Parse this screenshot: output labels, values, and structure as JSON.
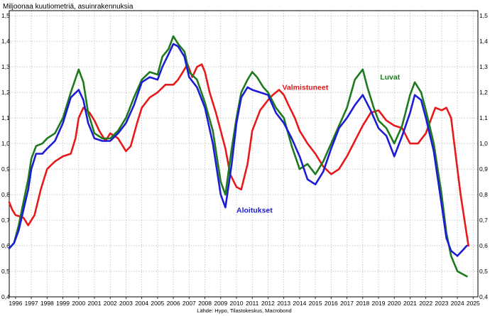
{
  "chart_data": {
    "type": "line",
    "title": "Miljoonaa kuutiometriä, asuinrakennuksia",
    "source": "Lähde: Hypo, Tilastokeskus, Macrobond",
    "x_ticks": [
      "1996",
      "1997",
      "1998",
      "1999",
      "2000",
      "2001",
      "2002",
      "2003",
      "2004",
      "2005",
      "2006",
      "2007",
      "2008",
      "2009",
      "2010",
      "2011",
      "2012",
      "2013",
      "2014",
      "2015",
      "2016",
      "2017",
      "2018",
      "2019",
      "2020",
      "2021",
      "2022",
      "2023",
      "2024",
      "2025"
    ],
    "y_ticks": [
      "0,4",
      "0,5",
      "0,6",
      "0,7",
      "0,8",
      "0,9",
      "1,0",
      "1,1",
      "1,2",
      "1,3",
      "1,4",
      "1,5"
    ],
    "xlim": [
      1995.6,
      2025.3
    ],
    "ylim": [
      0.4,
      1.52
    ],
    "grid": true,
    "series": [
      {
        "name": "Valmistuneet",
        "color": "#e8191a",
        "points": [
          [
            1995.6,
            0.77
          ],
          [
            1995.8,
            0.74
          ],
          [
            1996.0,
            0.72
          ],
          [
            1996.5,
            0.71
          ],
          [
            1996.8,
            0.68
          ],
          [
            1997.2,
            0.72
          ],
          [
            1997.6,
            0.82
          ],
          [
            1998.0,
            0.9
          ],
          [
            1998.5,
            0.93
          ],
          [
            1999.0,
            0.95
          ],
          [
            1999.5,
            0.96
          ],
          [
            1999.8,
            1.02
          ],
          [
            2000.0,
            1.1
          ],
          [
            2000.3,
            1.14
          ],
          [
            2000.7,
            1.12
          ],
          [
            2001.0,
            1.09
          ],
          [
            2001.3,
            1.05
          ],
          [
            2001.7,
            1.01
          ],
          [
            2002.0,
            1.04
          ],
          [
            2002.5,
            1.02
          ],
          [
            2003.0,
            0.97
          ],
          [
            2003.3,
            0.99
          ],
          [
            2003.7,
            1.08
          ],
          [
            2004.0,
            1.14
          ],
          [
            2004.5,
            1.18
          ],
          [
            2005.0,
            1.2
          ],
          [
            2005.5,
            1.23
          ],
          [
            2006.0,
            1.23
          ],
          [
            2006.3,
            1.25
          ],
          [
            2006.6,
            1.28
          ],
          [
            2006.9,
            1.31
          ],
          [
            2007.2,
            1.26
          ],
          [
            2007.5,
            1.3
          ],
          [
            2007.8,
            1.31
          ],
          [
            2008.0,
            1.28
          ],
          [
            2008.3,
            1.2
          ],
          [
            2008.7,
            1.12
          ],
          [
            2009.0,
            1.05
          ],
          [
            2009.3,
            0.98
          ],
          [
            2009.6,
            0.88
          ],
          [
            2010.0,
            0.83
          ],
          [
            2010.3,
            0.82
          ],
          [
            2010.7,
            0.92
          ],
          [
            2011.0,
            1.05
          ],
          [
            2011.5,
            1.13
          ],
          [
            2012.0,
            1.17
          ],
          [
            2012.3,
            1.19
          ],
          [
            2012.7,
            1.21
          ],
          [
            2013.0,
            1.19
          ],
          [
            2013.3,
            1.15
          ],
          [
            2013.7,
            1.1
          ],
          [
            2014.0,
            1.05
          ],
          [
            2014.5,
            1.0
          ],
          [
            2015.0,
            0.96
          ],
          [
            2015.5,
            0.91
          ],
          [
            2016.0,
            0.88
          ],
          [
            2016.5,
            0.9
          ],
          [
            2017.0,
            0.95
          ],
          [
            2017.5,
            1.01
          ],
          [
            2018.0,
            1.07
          ],
          [
            2018.5,
            1.12
          ],
          [
            2019.0,
            1.13
          ],
          [
            2019.5,
            1.09
          ],
          [
            2020.0,
            1.07
          ],
          [
            2020.5,
            1.06
          ],
          [
            2021.0,
            1.0
          ],
          [
            2021.5,
            1.0
          ],
          [
            2022.0,
            1.04
          ],
          [
            2022.3,
            1.09
          ],
          [
            2022.6,
            1.14
          ],
          [
            2023.0,
            1.13
          ],
          [
            2023.3,
            1.14
          ],
          [
            2023.6,
            1.1
          ],
          [
            2023.9,
            0.95
          ],
          [
            2024.2,
            0.8
          ],
          [
            2024.5,
            0.68
          ],
          [
            2024.7,
            0.6
          ]
        ]
      },
      {
        "name": "Luvat",
        "color": "#1d7a1d",
        "points": [
          [
            1995.6,
            0.59
          ],
          [
            1995.9,
            0.61
          ],
          [
            1996.2,
            0.68
          ],
          [
            1996.5,
            0.77
          ],
          [
            1996.8,
            0.86
          ],
          [
            1997.0,
            0.94
          ],
          [
            1997.3,
            0.99
          ],
          [
            1997.7,
            1.0
          ],
          [
            1998.0,
            1.02
          ],
          [
            1998.5,
            1.04
          ],
          [
            1999.0,
            1.1
          ],
          [
            1999.5,
            1.2
          ],
          [
            2000.0,
            1.29
          ],
          [
            2000.3,
            1.24
          ],
          [
            2000.6,
            1.12
          ],
          [
            2001.0,
            1.04
          ],
          [
            2001.5,
            1.02
          ],
          [
            2002.0,
            1.02
          ],
          [
            2002.5,
            1.05
          ],
          [
            2003.0,
            1.1
          ],
          [
            2003.5,
            1.18
          ],
          [
            2004.0,
            1.25
          ],
          [
            2004.5,
            1.28
          ],
          [
            2005.0,
            1.27
          ],
          [
            2005.3,
            1.34
          ],
          [
            2005.7,
            1.37
          ],
          [
            2006.0,
            1.42
          ],
          [
            2006.3,
            1.39
          ],
          [
            2006.7,
            1.36
          ],
          [
            2007.0,
            1.28
          ],
          [
            2007.5,
            1.25
          ],
          [
            2008.0,
            1.16
          ],
          [
            2008.5,
            1.05
          ],
          [
            2009.0,
            0.85
          ],
          [
            2009.3,
            0.8
          ],
          [
            2009.7,
            0.98
          ],
          [
            2010.0,
            1.1
          ],
          [
            2010.3,
            1.2
          ],
          [
            2010.7,
            1.25
          ],
          [
            2011.0,
            1.28
          ],
          [
            2011.3,
            1.26
          ],
          [
            2011.7,
            1.22
          ],
          [
            2012.0,
            1.2
          ],
          [
            2012.5,
            1.14
          ],
          [
            2013.0,
            1.1
          ],
          [
            2013.5,
            0.99
          ],
          [
            2014.0,
            0.9
          ],
          [
            2014.5,
            0.92
          ],
          [
            2015.0,
            0.88
          ],
          [
            2015.5,
            0.93
          ],
          [
            2016.0,
            1.0
          ],
          [
            2016.5,
            1.07
          ],
          [
            2017.0,
            1.14
          ],
          [
            2017.5,
            1.25
          ],
          [
            2018.0,
            1.29
          ],
          [
            2018.3,
            1.22
          ],
          [
            2018.7,
            1.14
          ],
          [
            2019.0,
            1.09
          ],
          [
            2019.5,
            1.06
          ],
          [
            2020.0,
            1.0
          ],
          [
            2020.5,
            1.07
          ],
          [
            2021.0,
            1.19
          ],
          [
            2021.3,
            1.24
          ],
          [
            2021.7,
            1.2
          ],
          [
            2022.0,
            1.13
          ],
          [
            2022.5,
            1.0
          ],
          [
            2023.0,
            0.8
          ],
          [
            2023.3,
            0.65
          ],
          [
            2023.6,
            0.56
          ],
          [
            2024.0,
            0.5
          ],
          [
            2024.3,
            0.49
          ],
          [
            2024.6,
            0.48
          ]
        ]
      },
      {
        "name": "Aloitukset",
        "color": "#1c1cd6",
        "points": [
          [
            1995.6,
            0.59
          ],
          [
            1995.9,
            0.61
          ],
          [
            1996.2,
            0.66
          ],
          [
            1996.5,
            0.74
          ],
          [
            1996.8,
            0.82
          ],
          [
            1997.0,
            0.9
          ],
          [
            1997.3,
            0.96
          ],
          [
            1997.7,
            0.96
          ],
          [
            1998.0,
            0.98
          ],
          [
            1998.5,
            1.01
          ],
          [
            1999.0,
            1.08
          ],
          [
            1999.5,
            1.18
          ],
          [
            2000.0,
            1.21
          ],
          [
            2000.3,
            1.17
          ],
          [
            2000.6,
            1.08
          ],
          [
            2001.0,
            1.02
          ],
          [
            2001.5,
            1.01
          ],
          [
            2002.0,
            1.01
          ],
          [
            2002.5,
            1.04
          ],
          [
            2003.0,
            1.08
          ],
          [
            2003.5,
            1.15
          ],
          [
            2004.0,
            1.24
          ],
          [
            2004.5,
            1.26
          ],
          [
            2005.0,
            1.25
          ],
          [
            2005.3,
            1.3
          ],
          [
            2005.7,
            1.35
          ],
          [
            2006.0,
            1.39
          ],
          [
            2006.3,
            1.38
          ],
          [
            2006.7,
            1.34
          ],
          [
            2007.0,
            1.26
          ],
          [
            2007.5,
            1.22
          ],
          [
            2008.0,
            1.14
          ],
          [
            2008.5,
            1.0
          ],
          [
            2009.0,
            0.8
          ],
          [
            2009.3,
            0.75
          ],
          [
            2009.7,
            0.92
          ],
          [
            2010.0,
            1.08
          ],
          [
            2010.3,
            1.18
          ],
          [
            2010.7,
            1.22
          ],
          [
            2011.0,
            1.21
          ],
          [
            2011.5,
            1.2
          ],
          [
            2012.0,
            1.19
          ],
          [
            2012.5,
            1.12
          ],
          [
            2013.0,
            1.08
          ],
          [
            2013.5,
            1.02
          ],
          [
            2014.0,
            0.95
          ],
          [
            2014.5,
            0.86
          ],
          [
            2015.0,
            0.84
          ],
          [
            2015.5,
            0.89
          ],
          [
            2016.0,
            0.98
          ],
          [
            2016.5,
            1.06
          ],
          [
            2017.0,
            1.1
          ],
          [
            2017.5,
            1.15
          ],
          [
            2018.0,
            1.19
          ],
          [
            2018.5,
            1.13
          ],
          [
            2019.0,
            1.06
          ],
          [
            2019.5,
            1.03
          ],
          [
            2020.0,
            0.95
          ],
          [
            2020.5,
            1.03
          ],
          [
            2021.0,
            1.12
          ],
          [
            2021.3,
            1.19
          ],
          [
            2021.7,
            1.17
          ],
          [
            2022.0,
            1.1
          ],
          [
            2022.5,
            0.97
          ],
          [
            2023.0,
            0.76
          ],
          [
            2023.3,
            0.63
          ],
          [
            2023.6,
            0.58
          ],
          [
            2024.0,
            0.56
          ],
          [
            2024.3,
            0.58
          ],
          [
            2024.6,
            0.6
          ]
        ]
      }
    ],
    "annotations": [
      {
        "text": "Valmistuneet",
        "series": "Valmistuneet",
        "x": 2012.9,
        "y": 1.21
      },
      {
        "text": "Luvat",
        "series": "Luvat",
        "x": 2019.1,
        "y": 1.25
      },
      {
        "text": "Aloitukset",
        "series": "Aloitukset",
        "x": 2010.0,
        "y": 0.73
      }
    ]
  }
}
